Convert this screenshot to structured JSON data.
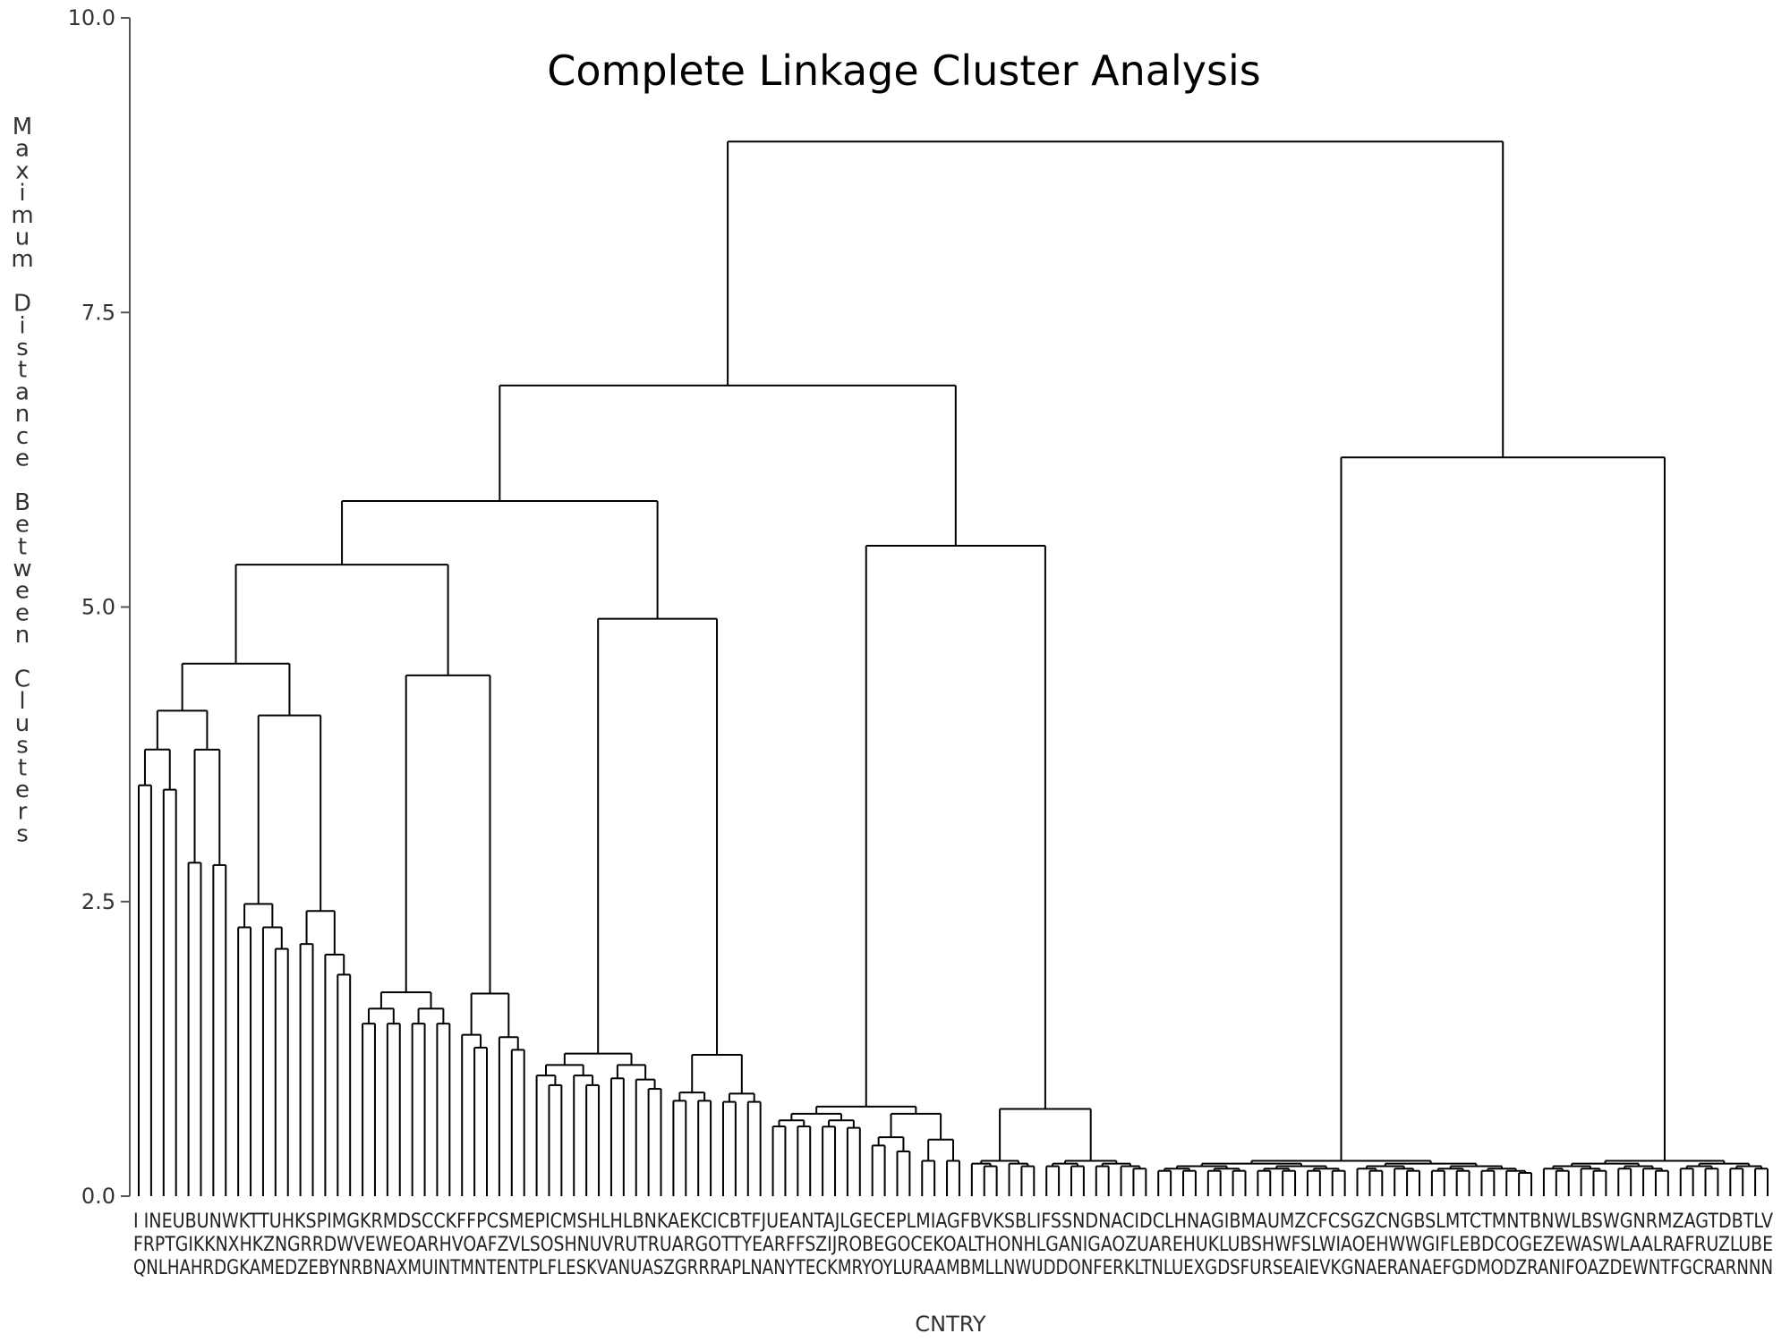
{
  "chart_data": {
    "type": "dendrogram",
    "title": "Complete Linkage Cluster Analysis",
    "ylabel": "Maximum Distance Between Clusters",
    "xlabel": "CNTRY",
    "ylim": [
      0,
      10
    ],
    "yticks": [
      "0.0",
      "2.5",
      "5.0",
      "7.5",
      "10.0"
    ],
    "ytick_values": [
      0,
      2.5,
      5,
      7.5,
      10
    ],
    "leaf_count": 132,
    "root_height": 8.95,
    "major_merge_heights": [
      8.95,
      6.88,
      6.27,
      5.52,
      5.9,
      5.36,
      4.9,
      4.52,
      4.42,
      4.12,
      4.08,
      3.82,
      3.79,
      3.52,
      3.45,
      3.44,
      3.15,
      3.05,
      2.98,
      2.83,
      2.81,
      2.74,
      2.65,
      2.58,
      2.5,
      2.48,
      2.42,
      2.33,
      2.31,
      2.29,
      2.29,
      2.22,
      2.21,
      2.2,
      2.18,
      2.14,
      2.05,
      2.04,
      1.9,
      1.89,
      1.88,
      1.75,
      1.73,
      1.73,
      1.72,
      1.72,
      1.71,
      1.66,
      1.64,
      1.63,
      1.62,
      1.61,
      1.6,
      1.59,
      1.52,
      1.49,
      1.43,
      1.41,
      1.38,
      1.37,
      1.35,
      1.33,
      1.31,
      1.3,
      1.28,
      1.27,
      1.25,
      1.24,
      1.22,
      1.21,
      1.2,
      1.2,
      1.18,
      1.15,
      1.12,
      1.1,
      1.08,
      1.08,
      1.03,
      1.02,
      1.01,
      1.0,
      1.0,
      1.0,
      0.99,
      0.99,
      0.95,
      0.93,
      0.93,
      0.92,
      0.9,
      0.88,
      0.87,
      0.86,
      0.86,
      0.84,
      0.84,
      0.84,
      0.83,
      0.82,
      0.82,
      0.8,
      0.8,
      0.78,
      0.77,
      0.76,
      0.74,
      0.74,
      0.72,
      0.72,
      0.7,
      0.7,
      0.69,
      0.66,
      0.62,
      0.6,
      0.6,
      0.59,
      0.58,
      0.56,
      0.56,
      0.54,
      0.52,
      0.5,
      0.48,
      0.43,
      0.38,
      0.37,
      0.36,
      0.33,
      0.31
    ],
    "leaf_label_rows": [
      "I  INEUBUNWKTTUHKSPIMGKRMDSCCKFFPCSMEPICMSHLHLBNKAEKCICBTFJUEANTAJLGECEPLMIAGFBVKSBLIFSSNDNACIDCLHNAGIBMAUMZCFCSGZCNGBSLMTCTMNTBNWLBSWGNRMZAGTDBTLV",
      "FRPTGIKKNXHKZNGRRDWVEWEOARHVOAFZVLSOSHNUVRUTRUARGOTTYEARFFSZIJROBEGOCEKOALTHONHLGANIGAOZUAREHUKLUBSHWFSLWIAOEHWWGIFLEBDCOGEZEWASWLAALRAFRUZLUBE",
      "QNLHAHRDGKAMEDZEBYNRBNAXMUINTMNTENTPLFLESKVANUASZGRRRAPLNANYTECKMRYOYLURAAMBMLLNWUDDONFERKLTNLUEXGDSFURSEAIEVKGNAERANAEFGDMODZRANIFOAZDEWNTFGCRARNNN"
    ],
    "grid": false
  }
}
